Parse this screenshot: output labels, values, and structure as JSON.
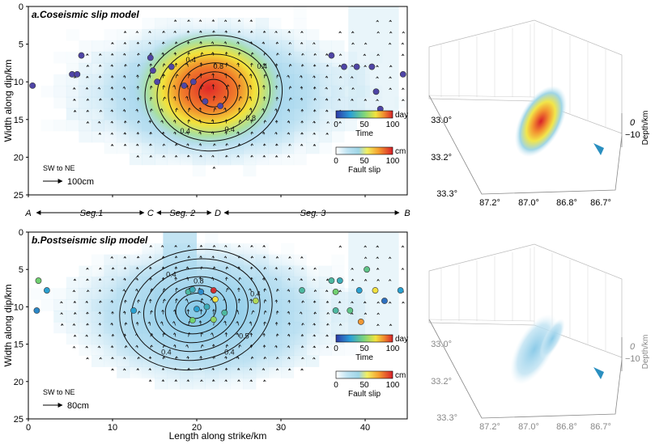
{
  "colors": {
    "slip_low": "#ffffff",
    "slip_mid": "#a9d8ee",
    "slip_high": "#e0342a",
    "time_scale": [
      "#3040b0",
      "#2aa0d0",
      "#70d070",
      "#f0e040",
      "#f08030",
      "#d03030"
    ],
    "fault_blue": "#2a8fc0"
  },
  "panels": [
    {
      "id": "a",
      "title": "a.Coseismic slip model",
      "ref_arrow_label": "100cm",
      "direction_label": "SW to NE",
      "contour_labels": [
        "0.4",
        "0.8",
        "0.4",
        "0.8",
        "0.4",
        "0.4"
      ],
      "time_legend": {
        "ticks": [
          "0",
          "50",
          "100"
        ],
        "unit": "day",
        "title": "Time"
      },
      "slip_legend": {
        "ticks": [
          "0",
          "50",
          "100"
        ],
        "unit": "cm",
        "title": "Fault slip"
      },
      "aftershocks": [
        {
          "x": 0.5,
          "y": 10.5,
          "t": 5
        },
        {
          "x": 5.2,
          "y": 9.0,
          "t": 5
        },
        {
          "x": 5.8,
          "y": 9.0,
          "t": 6
        },
        {
          "x": 6.3,
          "y": 6.5,
          "t": 8
        },
        {
          "x": 14.5,
          "y": 6.8,
          "t": 5
        },
        {
          "x": 14.8,
          "y": 8.5,
          "t": 6
        },
        {
          "x": 15.3,
          "y": 10.0,
          "t": 4
        },
        {
          "x": 17.0,
          "y": 8.0,
          "t": 5
        },
        {
          "x": 18.5,
          "y": 10.5,
          "t": 8
        },
        {
          "x": 19.6,
          "y": 10.0,
          "t": 6
        },
        {
          "x": 21.0,
          "y": 12.6,
          "t": 5
        },
        {
          "x": 22.8,
          "y": 13.2,
          "t": 7
        },
        {
          "x": 36.0,
          "y": 6.5,
          "t": 5
        },
        {
          "x": 37.5,
          "y": 8.0,
          "t": 5
        },
        {
          "x": 39.0,
          "y": 8.0,
          "t": 5
        },
        {
          "x": 40.8,
          "y": 8.0,
          "t": 5
        },
        {
          "x": 41.3,
          "y": 11.3,
          "t": 6
        },
        {
          "x": 41.8,
          "y": 13.6,
          "t": 6
        },
        {
          "x": 44.5,
          "y": 9.0,
          "t": 5
        }
      ],
      "view3d": {
        "lat_ticks": [
          "33.0°",
          "33.2°",
          "33.3°"
        ],
        "lon_ticks": [
          "87.2°",
          "87.0°",
          "86.8°",
          "86.7°"
        ],
        "depth_ticks": [
          "0",
          "−10"
        ],
        "depth_label": "Depth/km"
      }
    },
    {
      "id": "b",
      "title": "b.Postseismic slip model",
      "ref_arrow_label": "80cm",
      "direction_label": "SW to NE",
      "contour_labels": [
        "0.4",
        "0.8",
        "0.4",
        "0.5",
        "0.4",
        "0.4"
      ],
      "time_legend": {
        "ticks": [
          "0",
          "50",
          "100"
        ],
        "unit": "day",
        "title": "Time"
      },
      "slip_legend": {
        "ticks": [
          "0",
          "50",
          "100"
        ],
        "unit": "cm",
        "title": "Fault slip"
      },
      "aftershocks": [
        {
          "x": 1.2,
          "y": 6.5,
          "t": 40
        },
        {
          "x": 2.2,
          "y": 7.8,
          "t": 20
        },
        {
          "x": 1.0,
          "y": 10.5,
          "t": 15
        },
        {
          "x": 12.5,
          "y": 10.5,
          "t": 20
        },
        {
          "x": 19.0,
          "y": 8.0,
          "t": 30
        },
        {
          "x": 19.5,
          "y": 7.7,
          "t": 25
        },
        {
          "x": 20.5,
          "y": 8.0,
          "t": 15
        },
        {
          "x": 22.0,
          "y": 7.8,
          "t": 100
        },
        {
          "x": 22.2,
          "y": 9.0,
          "t": 60
        },
        {
          "x": 20.0,
          "y": 10.3,
          "t": 20
        },
        {
          "x": 21.2,
          "y": 10.0,
          "t": 25
        },
        {
          "x": 23.3,
          "y": 10.8,
          "t": 30
        },
        {
          "x": 22.0,
          "y": 11.7,
          "t": 45
        },
        {
          "x": 27.0,
          "y": 9.2,
          "t": 50
        },
        {
          "x": 32.5,
          "y": 7.8,
          "t": 30
        },
        {
          "x": 36.0,
          "y": 6.5,
          "t": 30
        },
        {
          "x": 37.0,
          "y": 6.5,
          "t": 25
        },
        {
          "x": 36.5,
          "y": 8.0,
          "t": 40
        },
        {
          "x": 40.2,
          "y": 5.0,
          "t": 35
        },
        {
          "x": 39.3,
          "y": 7.8,
          "t": 20
        },
        {
          "x": 41.2,
          "y": 7.8,
          "t": 60
        },
        {
          "x": 44.2,
          "y": 7.8,
          "t": 20
        },
        {
          "x": 36.5,
          "y": 10.5,
          "t": 30
        },
        {
          "x": 38.2,
          "y": 10.5,
          "t": 35
        },
        {
          "x": 42.3,
          "y": 9.2,
          "t": 10
        },
        {
          "x": 39.5,
          "y": 12.0,
          "t": 75
        },
        {
          "x": 19.5,
          "y": 11.8,
          "t": 40
        }
      ],
      "view3d": {
        "lat_ticks": [
          "33.0°",
          "33.2°",
          "33.3°"
        ],
        "lon_ticks": [
          "87.2°",
          "87.0°",
          "86.8°",
          "86.7°"
        ],
        "depth_ticks": [
          "0",
          "−10"
        ],
        "depth_label": "Depth/km"
      }
    }
  ],
  "segments": {
    "points": [
      {
        "label": "A",
        "x": 0
      },
      {
        "label": "C",
        "x": 14.5
      },
      {
        "label": "D",
        "x": 22.5
      },
      {
        "label": "B",
        "x": 45
      }
    ],
    "labels": [
      {
        "text": "Seg.1",
        "x": 7.5
      },
      {
        "text": "Seg. 2",
        "x": 18.3
      },
      {
        "text": "Seg. 3",
        "x": 33.8
      }
    ]
  },
  "chart_data": [
    {
      "type": "heatmap",
      "title": "a.Coseismic slip model",
      "xlabel": "Length along strike/km",
      "ylabel": "Width along dip/km",
      "xlim": [
        0,
        45
      ],
      "ylim": [
        0,
        25
      ],
      "x_ticks": [
        "0",
        "10",
        "20",
        "30",
        "40"
      ],
      "y_ticks": [
        "0",
        "5",
        "10",
        "15",
        "20",
        "25"
      ],
      "peak_slip_location": {
        "x": 22,
        "y": 11.5
      },
      "peak_slip_cm": 100
    },
    {
      "type": "heatmap",
      "title": "b.Postseismic slip model",
      "xlabel": "Length along strike/km",
      "ylabel": "Width along dip/km",
      "xlim": [
        0,
        45
      ],
      "ylim": [
        0,
        25
      ],
      "x_ticks": [
        "0",
        "10",
        "20",
        "30",
        "40"
      ],
      "y_ticks": [
        "0",
        "5",
        "10",
        "15",
        "20",
        "25"
      ],
      "peak_slip_location": {
        "x": 21,
        "y": 11
      },
      "peak_slip_cm": 25
    }
  ]
}
